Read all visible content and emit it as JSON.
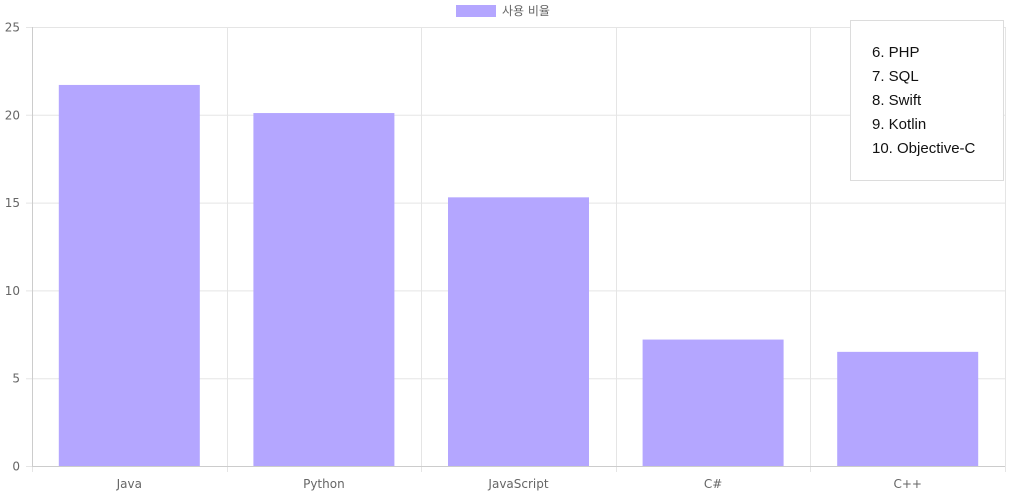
{
  "chart_data": {
    "type": "bar",
    "categories": [
      "Java",
      "Python",
      "JavaScript",
      "C#",
      "C++"
    ],
    "series": [
      {
        "name": "사용 비율",
        "values": [
          21.7,
          20.1,
          15.3,
          7.2,
          6.5
        ]
      }
    ],
    "ylim": [
      0,
      25
    ],
    "yticks": [
      0,
      5,
      10,
      15,
      20,
      25
    ],
    "grid": true,
    "legend_position": "top"
  },
  "colors": {
    "bar_fill": "#b4a6ff",
    "grid": "#e5e5e5",
    "axis": "#cccccc"
  },
  "note_box": {
    "items": [
      "6. PHP",
      "7. SQL",
      "8. Swift",
      "9. Kotlin",
      "10. Objective-C"
    ]
  }
}
